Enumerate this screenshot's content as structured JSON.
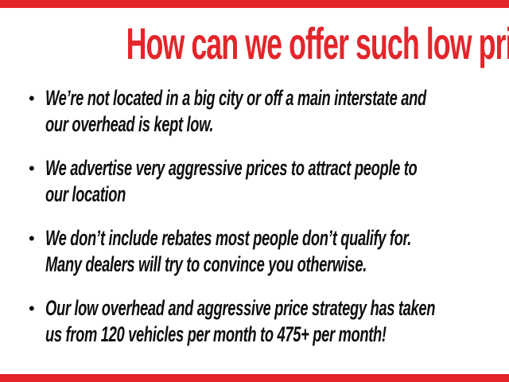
{
  "page": {
    "accent_color": "#e4252a",
    "text_color": "#0e0e0e",
    "background_color": "#ffffff"
  },
  "header": {
    "title": "How can we offer such low prices?"
  },
  "bullet_marker": "•",
  "bullets": [
    {
      "lines": [
        "We’re not located in a big city or off a main interstate and",
        "our overhead is kept low."
      ]
    },
    {
      "lines": [
        "We advertise very aggressive prices to attract people to",
        "our location"
      ]
    },
    {
      "lines": [
        "We don’t include rebates most people don’t qualify for.",
        "Many dealers will try to convince you otherwise."
      ]
    },
    {
      "lines": [
        "Our low overhead and aggressive price strategy has taken",
        "us from 120 vehicles per month to 475+ per month!"
      ]
    }
  ]
}
